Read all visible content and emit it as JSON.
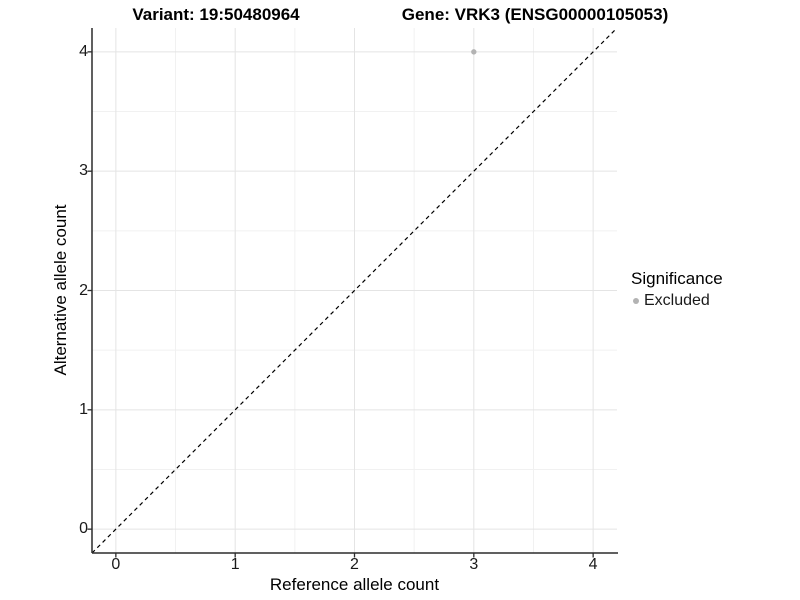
{
  "chart_data": {
    "type": "scatter",
    "title_left": "Variant: 19:50480964",
    "title_right": "Gene: VRK3 (ENSG00000105053)",
    "xlabel": "Reference allele count",
    "ylabel": "Alternative allele count",
    "xlim": [
      -0.2,
      4.2
    ],
    "ylim": [
      -0.2,
      4.2
    ],
    "x_ticks": [
      0,
      1,
      2,
      3,
      4
    ],
    "y_ticks": [
      0,
      1,
      2,
      3,
      4
    ],
    "x_minor_ticks": [
      0.5,
      1.5,
      2.5,
      3.5
    ],
    "y_minor_ticks": [
      0.5,
      1.5,
      2.5,
      3.5
    ],
    "grid": "major and minor gridlines on white background",
    "series": [
      {
        "name": "Excluded",
        "color": "#b3b3b3",
        "marker": "circle",
        "points": [
          {
            "x": 3,
            "y": 4
          }
        ]
      }
    ],
    "reference_line": {
      "kind": "y=x identity",
      "style": "dashed",
      "color": "#000000"
    },
    "legend": {
      "position": "right",
      "title": "Significance",
      "entries": [
        {
          "label": "Excluded",
          "color": "#b3b3b3"
        }
      ]
    }
  },
  "colors": {
    "background": "#ffffff",
    "grid_major": "#e4e4e4",
    "grid_minor": "#f1f1f1",
    "axis_line": "#2b2b2b",
    "tick_mark": "#2b2b2b",
    "point": "#b3b3b3",
    "reference_line": "#000000"
  }
}
